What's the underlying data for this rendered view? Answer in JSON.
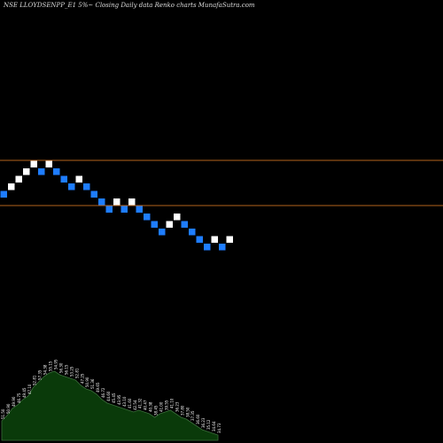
{
  "title": "NSE LLOYDSENPP_E1 5%~ Closing Daily data Renko charts MunafaSutra.com",
  "colors": {
    "background": "#000000",
    "up_brick": "#ffffff",
    "down_brick": "#1e7dff",
    "level_line": "#b5651d",
    "volume_fill": "#0a3a0a",
    "volume_stroke": "#3a6e3a",
    "label_text": "#ffffff"
  },
  "chart_data": {
    "type": "renko",
    "title": "NSE LLOYDSENPP_E1 5%~ Closing Daily data Renko charts MunafaSutra.com",
    "brick_size_note": "5%",
    "bricks": [
      {
        "dir": "down",
        "level": 6
      },
      {
        "dir": "up",
        "level": 7
      },
      {
        "dir": "up",
        "level": 8
      },
      {
        "dir": "up",
        "level": 9
      },
      {
        "dir": "up",
        "level": 10
      },
      {
        "dir": "down",
        "level": 9
      },
      {
        "dir": "up",
        "level": 10
      },
      {
        "dir": "down",
        "level": 9
      },
      {
        "dir": "down",
        "level": 8
      },
      {
        "dir": "down",
        "level": 7
      },
      {
        "dir": "up",
        "level": 8
      },
      {
        "dir": "down",
        "level": 7
      },
      {
        "dir": "down",
        "level": 6
      },
      {
        "dir": "down",
        "level": 5
      },
      {
        "dir": "down",
        "level": 4
      },
      {
        "dir": "up",
        "level": 5
      },
      {
        "dir": "down",
        "level": 4
      },
      {
        "dir": "up",
        "level": 5
      },
      {
        "dir": "down",
        "level": 4
      },
      {
        "dir": "down",
        "level": 3
      },
      {
        "dir": "down",
        "level": 2
      },
      {
        "dir": "down",
        "level": 1
      },
      {
        "dir": "up",
        "level": 2
      },
      {
        "dir": "up",
        "level": 3
      },
      {
        "dir": "down",
        "level": 2
      },
      {
        "dir": "down",
        "level": 1
      },
      {
        "dir": "down",
        "level": 0
      },
      {
        "dir": "down",
        "level": -1
      },
      {
        "dir": "up",
        "level": 0
      },
      {
        "dir": "down",
        "level": -1
      },
      {
        "dir": "up",
        "level": 0
      }
    ],
    "horizontal_levels": [
      11,
      5
    ],
    "volume_labels": [
      "51.50",
      "50.90",
      "49.90",
      "46.75",
      "49.45",
      "47.10",
      "52.81",
      "57.35",
      "54.38",
      "55.15",
      "54.95",
      "56.30",
      "56.15",
      "53.25",
      "52.81",
      "47.25",
      "50.90",
      "51.36",
      "49.65",
      "46.72",
      "44.60",
      "45.45",
      "43.95",
      "43.10",
      "41.60",
      "42.54",
      "41.32",
      "40.47",
      "40.38",
      "38.45",
      "41.00",
      "39.55",
      "41.10",
      "36.23",
      "37.80",
      "38.50",
      "37.35",
      "36.60",
      "36.23",
      "35.12",
      "34.64",
      "34.73"
    ],
    "volume_values": [
      22,
      28,
      36,
      40,
      46,
      50,
      60,
      66,
      72,
      76,
      78,
      74,
      72,
      70,
      68,
      62,
      58,
      56,
      52,
      46,
      42,
      40,
      38,
      36,
      34,
      32,
      34,
      32,
      30,
      26,
      30,
      32,
      34,
      30,
      26,
      24,
      20,
      16,
      12,
      10,
      8,
      6
    ]
  }
}
